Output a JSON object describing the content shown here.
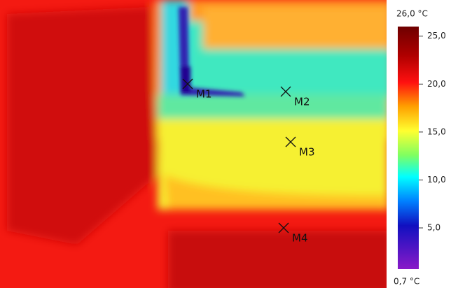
{
  "image": {
    "markers": [
      {
        "label": "M1"
      },
      {
        "label": "M2"
      },
      {
        "label": "M3"
      },
      {
        "label": "M4"
      }
    ]
  },
  "scale": {
    "max": 26,
    "min": 0.7,
    "max_label": "26,0 °C",
    "min_label": "0,7 °C",
    "ticks": [
      {
        "value": 25,
        "label": "25,0"
      },
      {
        "value": 20,
        "label": "20,0"
      },
      {
        "value": 15,
        "label": "15,0"
      },
      {
        "value": 10,
        "label": "10,0"
      },
      {
        "value": 5,
        "label": "5,0"
      }
    ]
  }
}
